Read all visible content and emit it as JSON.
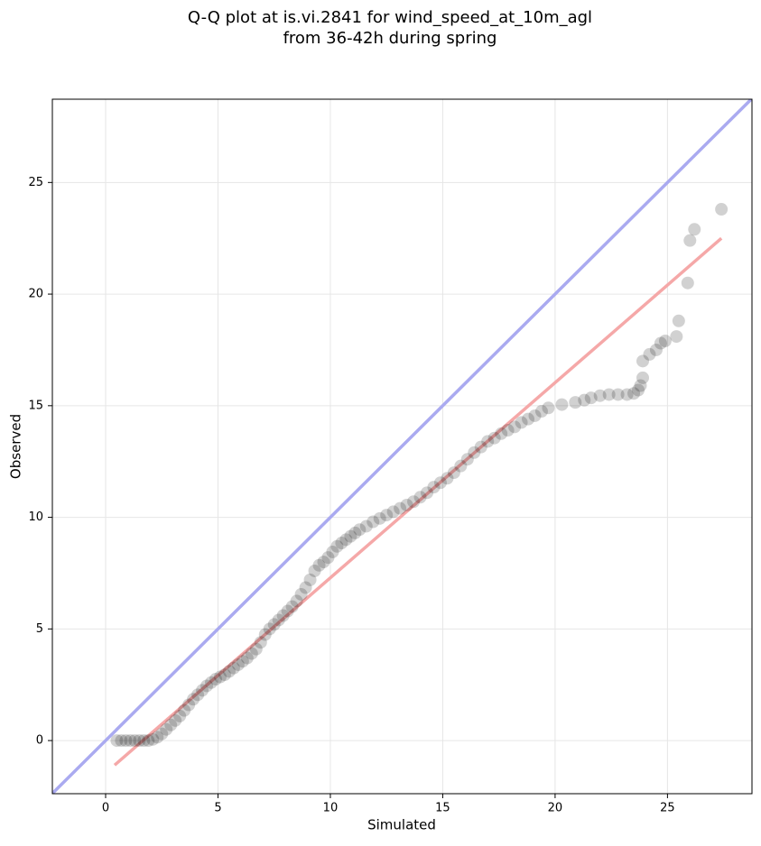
{
  "chart_data": {
    "type": "scatter",
    "title": [
      "Q-Q plot at is.vi.2841 for wind_speed_at_10m_agl",
      "from 36-42h during spring"
    ],
    "xlabel": "Simulated",
    "ylabel": "Observed",
    "xlim": [
      -2.37,
      28.76
    ],
    "ylim": [
      -2.38,
      28.73
    ],
    "xticks": [
      0,
      5,
      10,
      15,
      20,
      25
    ],
    "yticks": [
      0,
      5,
      10,
      15,
      20,
      25
    ],
    "grid": true,
    "series": [
      {
        "color": "#000000",
        "x": [
          0.5,
          0.7,
          0.9,
          1.1,
          1.3,
          1.5,
          1.7,
          1.9,
          2.1,
          2.3,
          2.5,
          2.7,
          2.9,
          3.1,
          3.3,
          3.5,
          3.7,
          3.9,
          4.1,
          4.3,
          4.5,
          4.7,
          4.9,
          5.1,
          5.3,
          5.5,
          5.7,
          5.9,
          6.1,
          6.3,
          6.5,
          6.7,
          6.9,
          7.1,
          7.3,
          7.5,
          7.7,
          7.9,
          8.1,
          8.3,
          8.5,
          8.7,
          8.9,
          9.1,
          9.3,
          9.5,
          9.7,
          9.9,
          10.1,
          10.3,
          10.5,
          10.7,
          10.9,
          11.1,
          11.3,
          11.6,
          11.9,
          12.2,
          12.5,
          12.8,
          13.1,
          13.4,
          13.7,
          14.0,
          14.3,
          14.6,
          14.9,
          15.2,
          15.5,
          15.8,
          16.1,
          16.4,
          16.7,
          17.0,
          17.3,
          17.6,
          17.9,
          18.2,
          18.5,
          18.8,
          19.1,
          19.4,
          19.7,
          20.3,
          20.9,
          21.3,
          21.6,
          22.0,
          22.4,
          22.8,
          23.2,
          23.5,
          23.7,
          23.8,
          23.9,
          23.9,
          24.2,
          24.5,
          24.7,
          24.9,
          25.4,
          25.5,
          25.9,
          26.0,
          26.2,
          27.4
        ],
        "y": [
          0,
          0,
          0,
          0,
          0,
          0,
          0,
          0,
          0.05,
          0.15,
          0.3,
          0.5,
          0.7,
          0.9,
          1.1,
          1.35,
          1.6,
          1.85,
          2.05,
          2.25,
          2.45,
          2.6,
          2.75,
          2.85,
          2.95,
          3.1,
          3.25,
          3.4,
          3.55,
          3.7,
          3.9,
          4.1,
          4.4,
          4.75,
          5.0,
          5.2,
          5.4,
          5.6,
          5.8,
          6.0,
          6.25,
          6.55,
          6.85,
          7.2,
          7.6,
          7.85,
          8.0,
          8.2,
          8.45,
          8.7,
          8.85,
          9.0,
          9.15,
          9.3,
          9.45,
          9.6,
          9.8,
          9.95,
          10.1,
          10.25,
          10.4,
          10.55,
          10.7,
          10.9,
          11.1,
          11.35,
          11.55,
          11.75,
          12.0,
          12.3,
          12.6,
          12.9,
          13.15,
          13.4,
          13.55,
          13.75,
          13.9,
          14.05,
          14.25,
          14.4,
          14.55,
          14.75,
          14.9,
          15.05,
          15.15,
          15.25,
          15.35,
          15.45,
          15.5,
          15.5,
          15.5,
          15.55,
          15.7,
          15.9,
          16.25,
          17.0,
          17.3,
          17.5,
          17.8,
          17.9,
          18.1,
          18.8,
          20.5,
          22.4,
          22.9,
          23.8
        ]
      }
    ],
    "lines": [
      {
        "color": "#aaaaf0",
        "x": [
          -2.37,
          28.76
        ],
        "y": [
          -2.37,
          28.76
        ]
      },
      {
        "color": "#f5a8a8",
        "x": [
          0.4,
          27.4
        ],
        "y": [
          -1.1,
          22.5
        ]
      }
    ]
  }
}
